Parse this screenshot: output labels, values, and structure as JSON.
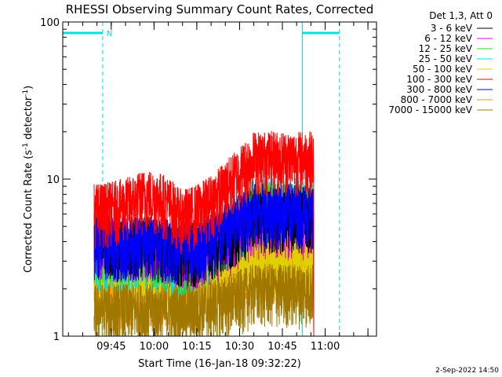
{
  "chart_data": {
    "type": "line",
    "title": "RHESSI Observing Summary Count Rates, Corrected",
    "xlabel": "Start Time (16-Jan-18 09:32:22)",
    "ylabel_parts": [
      "Corrected Count Rate (s",
      "-1",
      " detector",
      "-1",
      ")"
    ],
    "yscale": "log",
    "ylim": [
      1,
      100
    ],
    "yticks": [
      1,
      10,
      100
    ],
    "ytick_labels": [
      "1",
      "10",
      "100"
    ],
    "xlim_minutes": [
      -17,
      93
    ],
    "xticks_minutes": [
      0,
      15,
      30,
      45,
      60,
      75,
      90
    ],
    "xtick_labels": [
      "09:45",
      "10:00",
      "10:15",
      "10:30",
      "10:45",
      "11:00"
    ],
    "xtick_label_minutes": [
      0,
      15,
      30,
      45,
      60,
      75
    ],
    "legend_header": "Det 1,3, Att 0",
    "legend_position": "top-right",
    "night_bars": [
      {
        "label": "N",
        "start_minute": -17,
        "end_minute": -3
      },
      {
        "label": "",
        "start_minute": 67,
        "end_minute": 80
      }
    ],
    "day_lines_minutes": [
      -17,
      67
    ],
    "dashed_lines_minutes": [
      -3,
      80
    ],
    "data_window_minutes": [
      -6,
      71
    ],
    "series": [
      {
        "name": "3 - 6 keV",
        "color": "#000000",
        "values_by_phase": [
          4.2,
          4.0,
          3.6,
          6.0
        ]
      },
      {
        "name": "6 - 12 keV",
        "color": "#e000e0",
        "values_by_phase": [
          4.0,
          4.0,
          3.4,
          5.5
        ]
      },
      {
        "name": "12 - 25 keV",
        "color": "#22dd22",
        "values_by_phase": [
          3.8,
          3.7,
          3.3,
          6.5
        ]
      },
      {
        "name": "25 - 50 keV",
        "color": "#00e0e0",
        "values_by_phase": [
          3.5,
          3.5,
          3.2,
          7.0
        ]
      },
      {
        "name": "50 - 100 keV",
        "color": "#e0d000",
        "values_by_phase": [
          2.5,
          2.5,
          2.5,
          3.0
        ]
      },
      {
        "name": "100 - 300 keV",
        "color": "#ff0000",
        "values_by_phase": [
          6.5,
          8.0,
          6.0,
          14.0
        ]
      },
      {
        "name": "300 - 800 keV",
        "color": "#0000ff",
        "values_by_phase": [
          4.0,
          4.0,
          3.8,
          6.5
        ]
      },
      {
        "name": "800 - 7000 keV",
        "color": "#ff8c00",
        "values_by_phase": [
          2.0,
          2.0,
          2.0,
          3.0
        ]
      },
      {
        "name": "7000 - 15000 keV",
        "color": "#a07800",
        "values_by_phase": [
          1.5,
          1.5,
          1.5,
          2.0
        ]
      }
    ],
    "phase_boundaries_minutes": [
      -6,
      12,
      24,
      50,
      71
    ],
    "grid": false
  },
  "footer": {
    "date_stamp": "2-Sep-2022 14:50"
  }
}
